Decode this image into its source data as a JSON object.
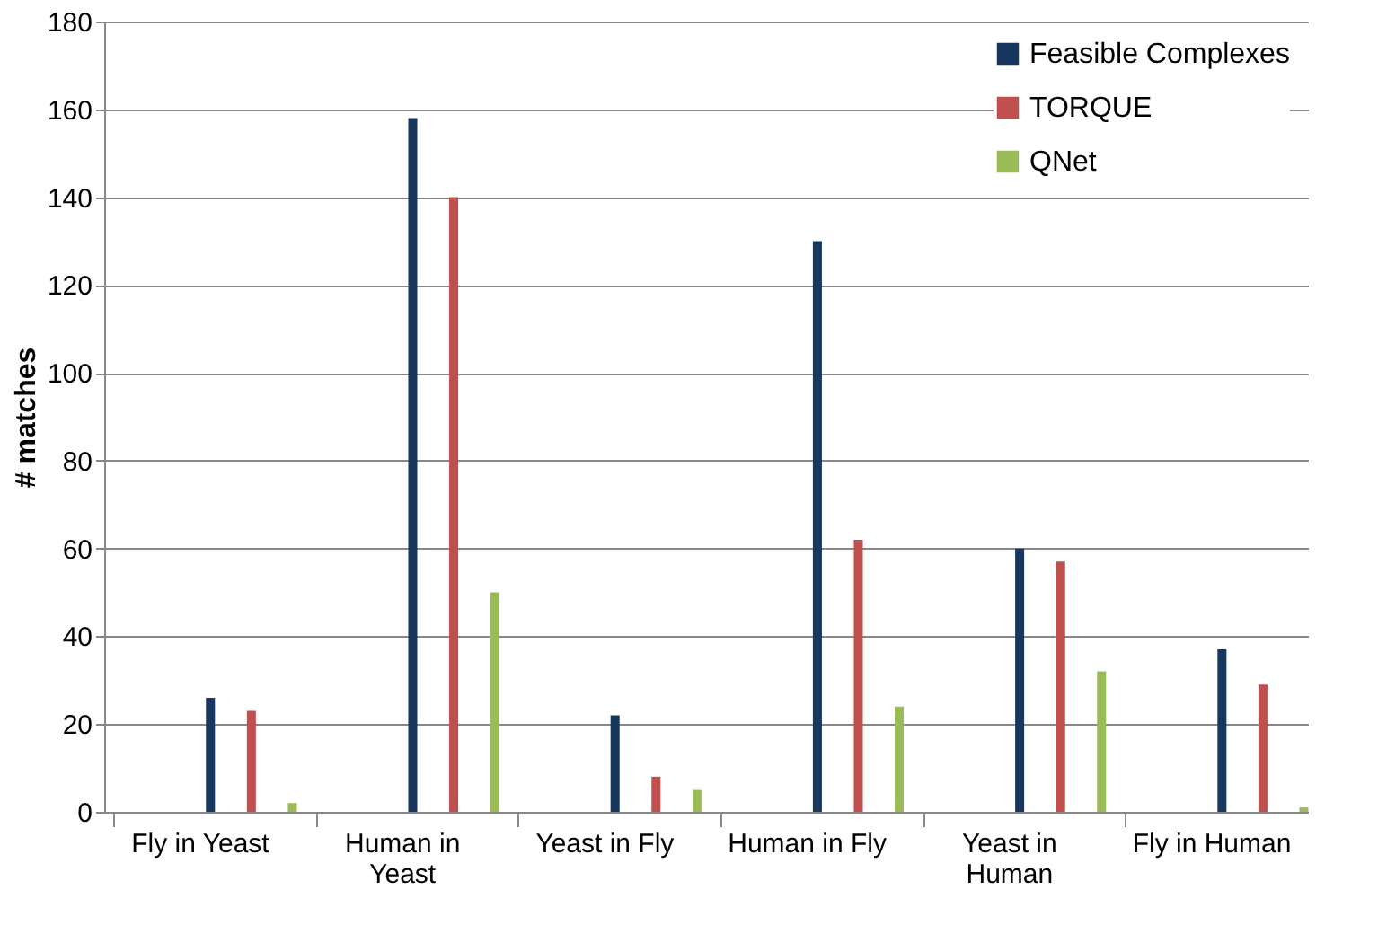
{
  "chart_data": {
    "type": "bar",
    "ylabel": "# matches",
    "categories": [
      "Fly in Yeast",
      "Human in Yeast",
      "Yeast in Fly",
      "Human in Fly",
      "Yeast in Human",
      "Fly in Human"
    ],
    "series": [
      {
        "name": "Feasible Complexes",
        "color": "#17375e",
        "values": [
          26,
          158,
          22,
          130,
          60,
          37
        ]
      },
      {
        "name": "TORQUE",
        "color": "#c0504d",
        "values": [
          23,
          140,
          8,
          62,
          57,
          29
        ]
      },
      {
        "name": "QNet",
        "color": "#9bbb59",
        "values": [
          2,
          50,
          5,
          24,
          32,
          1
        ]
      }
    ],
    "ylim": [
      0,
      180
    ],
    "yticks": [
      0,
      20,
      40,
      60,
      80,
      100,
      120,
      140,
      160,
      180
    ],
    "grid": "y",
    "legend": "top right"
  }
}
